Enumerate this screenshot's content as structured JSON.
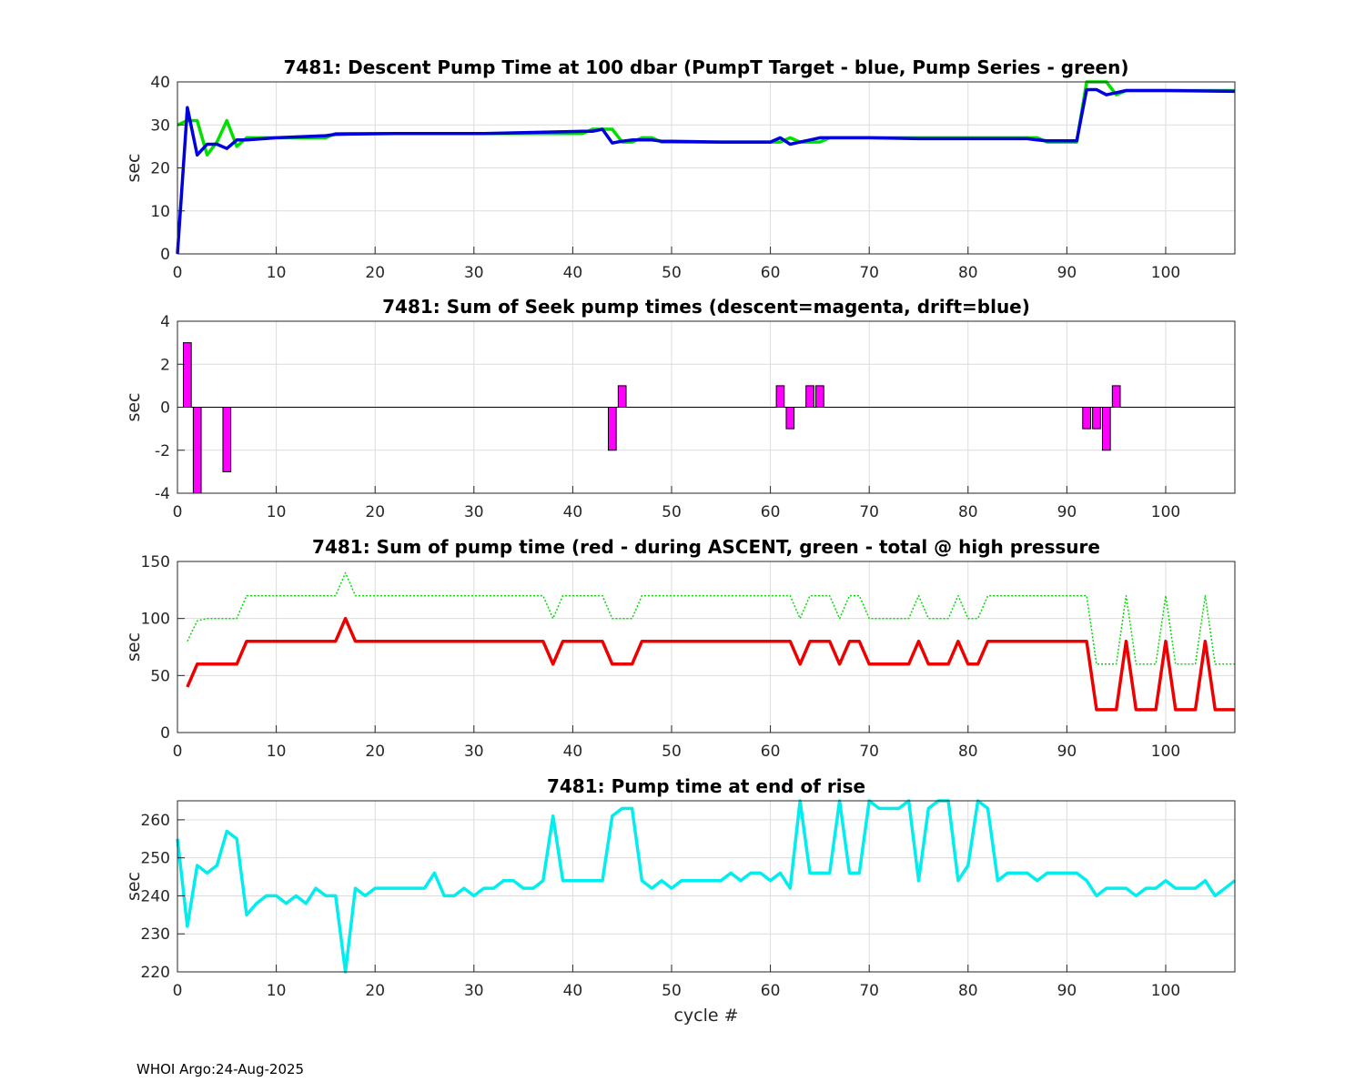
{
  "footer": "WHOI Argo:24-Aug-2025",
  "xlabel_bottom": "cycle #",
  "chart_data": [
    {
      "type": "line",
      "title": "7481: Descent Pump Time at 100 dbar (PumpT Target - blue, Pump Series - green)",
      "ylabel": "sec",
      "xlim": [
        0,
        107
      ],
      "ylim": [
        0,
        40
      ],
      "xticks": [
        0,
        10,
        20,
        30,
        40,
        50,
        60,
        70,
        80,
        90,
        100
      ],
      "yticks": [
        0,
        10,
        20,
        30,
        40
      ],
      "grid": true,
      "series": [
        {
          "name": "Pump Series",
          "color": "#00e000",
          "style": "solid",
          "x": [
            0,
            1,
            2,
            3,
            4,
            5,
            6,
            7,
            10,
            15,
            16,
            22,
            23,
            24,
            30,
            31,
            41,
            42,
            43,
            44,
            45,
            46,
            47,
            48,
            49,
            50,
            55,
            60,
            61,
            62,
            63,
            64,
            65,
            66,
            70,
            75,
            76,
            80,
            85,
            86,
            87,
            88,
            91,
            92,
            93,
            94,
            95,
            96,
            100,
            107
          ],
          "values": [
            30,
            31,
            31,
            23,
            26,
            31,
            25,
            27,
            27,
            27,
            28,
            28,
            28,
            28,
            28,
            28,
            28,
            29,
            29,
            29,
            26,
            26,
            27,
            27,
            26,
            26,
            26,
            26,
            26,
            27,
            26,
            26,
            26,
            27,
            27,
            27,
            27,
            27,
            27,
            27,
            27,
            26,
            26,
            40,
            40,
            40,
            37,
            38,
            38,
            38
          ]
        },
        {
          "name": "PumpT Target",
          "color": "#0000dd",
          "style": "solid",
          "x": [
            0,
            1,
            2,
            3,
            4,
            5,
            6,
            7,
            10,
            15,
            16,
            22,
            23,
            24,
            30,
            31,
            41,
            42,
            43,
            44,
            45,
            46,
            47,
            48,
            49,
            50,
            55,
            60,
            61,
            62,
            63,
            64,
            65,
            66,
            70,
            75,
            76,
            80,
            85,
            86,
            87,
            88,
            91,
            92,
            93,
            94,
            95,
            96,
            100,
            107
          ],
          "values": [
            0,
            34,
            23,
            25.5,
            25.5,
            24.5,
            26.5,
            26.5,
            27,
            27.5,
            27.8,
            28,
            28,
            28,
            28,
            28,
            28.5,
            28.5,
            29,
            25.8,
            26.2,
            26.5,
            26.5,
            26.5,
            26.2,
            26.2,
            26,
            26,
            27,
            25.5,
            26,
            26.5,
            27,
            27,
            27,
            26.8,
            26.8,
            26.8,
            26.8,
            26.8,
            26.5,
            26.3,
            26.3,
            38.2,
            38.2,
            37,
            37.5,
            38,
            38,
            37.8
          ]
        }
      ]
    },
    {
      "type": "bar",
      "title": "7481: Sum of Seek pump times (descent=magenta, drift=blue)",
      "ylabel": "sec",
      "xlim": [
        0,
        107
      ],
      "ylim": [
        -4,
        4
      ],
      "xticks": [
        0,
        10,
        20,
        30,
        40,
        50,
        60,
        70,
        80,
        90,
        100
      ],
      "yticks": [
        -4,
        -2,
        0,
        2,
        4
      ],
      "grid": true,
      "series": [
        {
          "name": "descent",
          "color": "#ff00ff",
          "x": [
            1,
            2,
            5,
            44,
            45,
            61,
            62,
            64,
            65,
            92,
            93,
            94,
            95
          ],
          "values": [
            3,
            -4,
            -3,
            -2,
            1,
            1,
            -1,
            1,
            1,
            -1,
            -1,
            -2,
            1
          ]
        }
      ]
    },
    {
      "type": "line",
      "title": "7481: Sum of pump time (red - during ASCENT, green - total @ high pressure",
      "ylabel": "sec",
      "xlim": [
        0,
        107
      ],
      "ylim": [
        0,
        150
      ],
      "xticks": [
        0,
        10,
        20,
        30,
        40,
        50,
        60,
        70,
        80,
        90,
        100
      ],
      "yticks": [
        0,
        50,
        100,
        150
      ],
      "grid": true,
      "series": [
        {
          "name": "total @ high pressure",
          "color": "#00dd00",
          "style": "dotted",
          "x": [
            1,
            2,
            3,
            6,
            7,
            16,
            17,
            18,
            37,
            38,
            39,
            43,
            44,
            46,
            47,
            62,
            63,
            64,
            66,
            67,
            68,
            69,
            70,
            74,
            75,
            76,
            78,
            79,
            80,
            81,
            82,
            83,
            92,
            93,
            95,
            96,
            97,
            99,
            100,
            101,
            103,
            104,
            105,
            107
          ],
          "values": [
            80,
            98,
            100,
            100,
            120,
            120,
            140,
            120,
            120,
            100,
            120,
            120,
            100,
            100,
            120,
            120,
            100,
            120,
            120,
            100,
            120,
            120,
            100,
            100,
            120,
            100,
            100,
            120,
            100,
            100,
            120,
            120,
            120,
            60,
            60,
            120,
            60,
            60,
            120,
            60,
            60,
            120,
            60,
            60
          ]
        },
        {
          "name": "during ASCENT",
          "color": "#ee0000",
          "style": "solid",
          "x": [
            1,
            2,
            6,
            7,
            16,
            17,
            18,
            37,
            38,
            39,
            43,
            44,
            46,
            47,
            62,
            63,
            64,
            66,
            67,
            68,
            69,
            70,
            74,
            75,
            76,
            78,
            79,
            80,
            81,
            82,
            83,
            92,
            93,
            95,
            96,
            97,
            99,
            100,
            101,
            103,
            104,
            105,
            107
          ],
          "values": [
            40,
            60,
            60,
            80,
            80,
            100,
            80,
            80,
            60,
            80,
            80,
            60,
            60,
            80,
            80,
            60,
            80,
            80,
            60,
            80,
            80,
            60,
            60,
            80,
            60,
            60,
            80,
            60,
            60,
            80,
            80,
            80,
            20,
            20,
            80,
            20,
            20,
            80,
            20,
            20,
            80,
            20,
            20
          ]
        }
      ]
    },
    {
      "type": "line",
      "title": "7481: Pump time at end of rise",
      "ylabel": "sec",
      "xlabel": "cycle #",
      "xlim": [
        0,
        107
      ],
      "ylim": [
        220,
        265
      ],
      "xticks": [
        0,
        10,
        20,
        30,
        40,
        50,
        60,
        70,
        80,
        90,
        100
      ],
      "yticks": [
        220,
        230,
        240,
        250,
        260
      ],
      "grid": true,
      "series": [
        {
          "name": "end of rise",
          "color": "#00eeee",
          "style": "solid",
          "x": [
            0,
            1,
            2,
            3,
            4,
            5,
            6,
            7,
            8,
            9,
            10,
            11,
            12,
            13,
            14,
            15,
            16,
            17,
            18,
            19,
            20,
            21,
            22,
            23,
            24,
            25,
            26,
            27,
            28,
            29,
            30,
            31,
            32,
            33,
            34,
            35,
            36,
            37,
            38,
            39,
            40,
            41,
            42,
            43,
            44,
            45,
            46,
            47,
            48,
            49,
            50,
            51,
            52,
            53,
            54,
            55,
            56,
            57,
            58,
            59,
            60,
            61,
            62,
            63,
            64,
            65,
            66,
            67,
            68,
            69,
            70,
            71,
            72,
            73,
            74,
            75,
            76,
            77,
            78,
            79,
            80,
            81,
            82,
            83,
            84,
            85,
            86,
            87,
            88,
            89,
            90,
            91,
            92,
            93,
            94,
            95,
            96,
            97,
            98,
            99,
            100,
            101,
            102,
            103,
            104,
            105,
            106,
            107
          ],
          "values": [
            255,
            232,
            248,
            246,
            248,
            257,
            255,
            235,
            238,
            240,
            240,
            238,
            240,
            238,
            242,
            240,
            240,
            220,
            242,
            240,
            242,
            242,
            242,
            242,
            242,
            242,
            246,
            240,
            240,
            242,
            240,
            242,
            242,
            244,
            244,
            242,
            242,
            244,
            261,
            244,
            244,
            244,
            244,
            244,
            261,
            263,
            263,
            244,
            242,
            244,
            242,
            244,
            244,
            244,
            244,
            244,
            246,
            244,
            246,
            246,
            244,
            246,
            242,
            265,
            246,
            246,
            246,
            265,
            246,
            246,
            265,
            263,
            263,
            263,
            265,
            244,
            263,
            265,
            265,
            244,
            248,
            265,
            263,
            244,
            246,
            246,
            246,
            244,
            246,
            246,
            246,
            246,
            244,
            240,
            242,
            242,
            242,
            240,
            242,
            242,
            244,
            242,
            242,
            242,
            244,
            240,
            242,
            244
          ]
        }
      ]
    }
  ]
}
